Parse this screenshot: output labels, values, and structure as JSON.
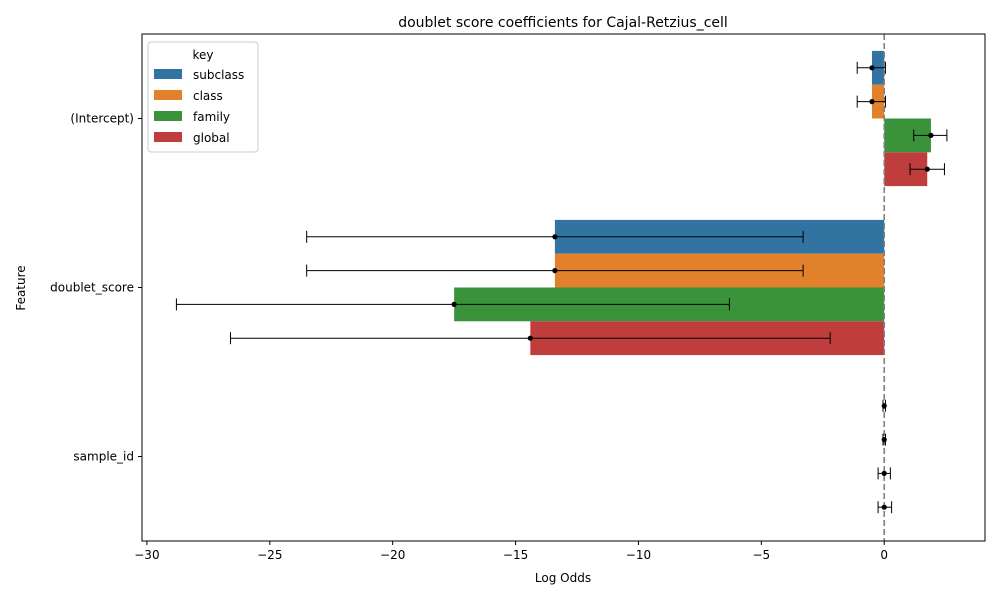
{
  "chart_data": {
    "type": "bar",
    "orientation": "horizontal",
    "title": "doublet score coefficients for Cajal-Retzius_cell",
    "xlabel": "Log Odds",
    "ylabel": "Feature",
    "categories": [
      "(Intercept)",
      "doublet_score",
      "sample_id"
    ],
    "xlim": [
      -30.2,
      4.1
    ],
    "xticks": [
      -30,
      -25,
      -20,
      -15,
      -10,
      -5,
      0
    ],
    "xtick_labels": [
      "−30",
      "−25",
      "−20",
      "−15",
      "−10",
      "−5",
      "0"
    ],
    "reference_line": 0,
    "legend": {
      "title": "key",
      "position": "top-left"
    },
    "series": [
      {
        "name": "subclass",
        "color": "#3274a1",
        "values": [
          -0.5,
          -13.4,
          0.0
        ],
        "ci_low": [
          -1.1,
          -23.5,
          -0.05
        ],
        "ci_high": [
          0.05,
          -3.3,
          0.05
        ]
      },
      {
        "name": "class",
        "color": "#e1812c",
        "values": [
          -0.5,
          -13.4,
          0.0
        ],
        "ci_low": [
          -1.1,
          -23.5,
          -0.05
        ],
        "ci_high": [
          0.05,
          -3.3,
          0.05
        ]
      },
      {
        "name": "family",
        "color": "#3a923a",
        "values": [
          1.9,
          -17.5,
          0.0
        ],
        "ci_low": [
          1.2,
          -28.8,
          -0.25
        ],
        "ci_high": [
          2.55,
          -6.3,
          0.25
        ]
      },
      {
        "name": "global",
        "color": "#c03d3e",
        "values": [
          1.75,
          -14.4,
          0.0
        ],
        "ci_low": [
          1.05,
          -26.6,
          -0.25
        ],
        "ci_high": [
          2.45,
          -2.2,
          0.3
        ]
      }
    ]
  }
}
